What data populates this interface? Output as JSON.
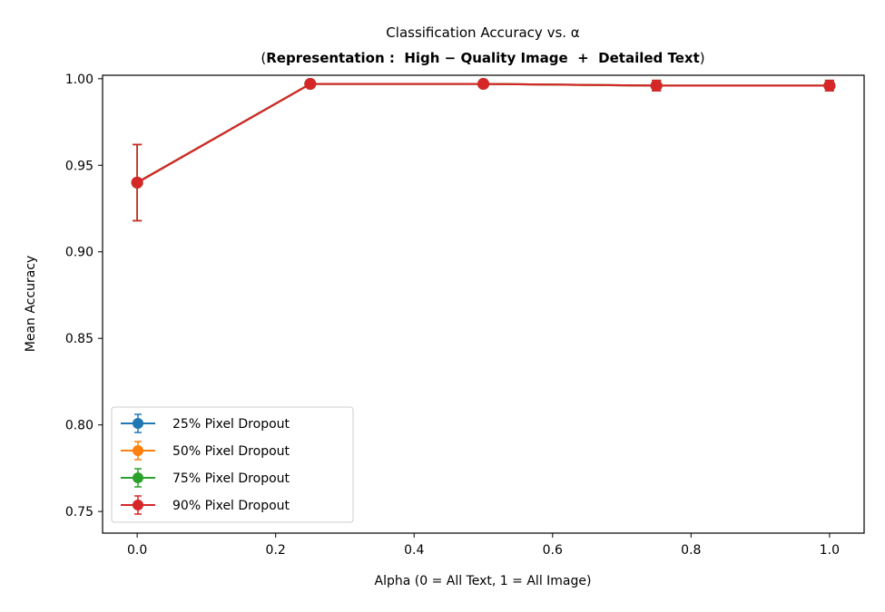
{
  "chart_data": {
    "type": "line",
    "title": "Classification Accuracy vs. α",
    "subtitle": {
      "open": "(",
      "bold": "Representation :  High − Quality Image  +  Detailed Text",
      "close": ")"
    },
    "xlabel": "Alpha (0 = All Text, 1 = All Image)",
    "ylabel": "Mean Accuracy",
    "xlim": [
      -0.05,
      1.05
    ],
    "ylim": [
      0.7375,
      1.002
    ],
    "xticks": [
      0.0,
      0.2,
      0.4,
      0.6,
      0.8,
      1.0
    ],
    "xtick_labels": [
      "0.0",
      "0.2",
      "0.4",
      "0.6",
      "0.8",
      "1.0"
    ],
    "yticks": [
      0.75,
      0.8,
      0.85,
      0.9,
      0.95,
      1.0
    ],
    "ytick_labels": [
      "0.75",
      "0.80",
      "0.85",
      "0.90",
      "0.95",
      "1.00"
    ],
    "grid": false,
    "legend_position": "lower-left",
    "x": [
      0.0,
      0.25,
      0.5,
      0.75,
      1.0
    ],
    "series": [
      {
        "name": "25% Pixel Dropout",
        "color": "#1f77b4",
        "values": [
          0.94,
          0.997,
          0.997,
          0.996,
          0.996
        ],
        "errors": [
          0.022,
          0.001,
          0.001,
          0.003,
          0.003
        ]
      },
      {
        "name": "50% Pixel Dropout",
        "color": "#ff7f0e",
        "values": [
          0.94,
          0.997,
          0.997,
          0.996,
          0.996
        ],
        "errors": [
          0.022,
          0.001,
          0.001,
          0.003,
          0.003
        ]
      },
      {
        "name": "75% Pixel Dropout",
        "color": "#2ca02c",
        "values": [
          0.94,
          0.997,
          0.997,
          0.996,
          0.996
        ],
        "errors": [
          0.022,
          0.001,
          0.001,
          0.003,
          0.003
        ]
      },
      {
        "name": "90% Pixel Dropout",
        "color": "#d62728",
        "values": [
          0.94,
          0.997,
          0.997,
          0.996,
          0.996
        ],
        "errors": [
          0.022,
          0.001,
          0.001,
          0.003,
          0.003
        ]
      }
    ]
  }
}
